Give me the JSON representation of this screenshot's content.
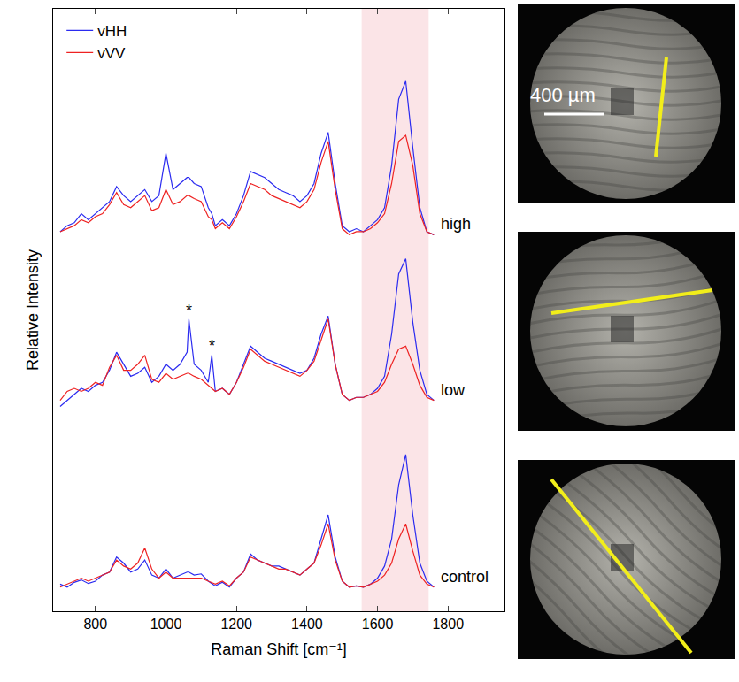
{
  "chart_data": {
    "type": "line",
    "x_label": "Raman Shift [cm⁻¹]",
    "y_label": "Relative Intensity",
    "xlim": [
      680,
      1960
    ],
    "xticks": [
      800,
      1000,
      1200,
      1400,
      1600,
      1800
    ],
    "ylim": [
      0,
      100
    ],
    "tick_labels": "x",
    "grid": false,
    "legend": "top-left",
    "x": [
      700,
      720,
      740,
      760,
      780,
      800,
      820,
      840,
      860,
      880,
      900,
      920,
      940,
      960,
      980,
      1000,
      1020,
      1040,
      1060,
      1065,
      1080,
      1100,
      1120,
      1130,
      1140,
      1160,
      1180,
      1200,
      1220,
      1240,
      1260,
      1280,
      1300,
      1320,
      1340,
      1360,
      1380,
      1400,
      1420,
      1440,
      1460,
      1480,
      1500,
      1520,
      1540,
      1560,
      1580,
      1600,
      1620,
      1640,
      1660,
      1680,
      1700,
      1720,
      1740,
      1760
    ],
    "groups": [
      {
        "label": "high",
        "series": [
          {
            "name": "vHH",
            "color": "#2b2bf0",
            "values": [
              63,
              64,
              64.5,
              66,
              65,
              66,
              67,
              68,
              70.5,
              69,
              68,
              69,
              70,
              68,
              69,
              76,
              70,
              71,
              72,
              72,
              71,
              70.5,
              67,
              66,
              64,
              65,
              64,
              66,
              69,
              73,
              72.5,
              72,
              71,
              70,
              69.5,
              69,
              68,
              69,
              71,
              76,
              79.5,
              71,
              64,
              63,
              63.5,
              63,
              64,
              65,
              67,
              74,
              85,
              88,
              77,
              67,
              63,
              62.5
            ]
          },
          {
            "name": "vVV",
            "color": "#ee2222",
            "values": [
              63,
              63.5,
              64,
              65,
              64.5,
              65.5,
              66,
              67.5,
              69.5,
              67.5,
              67,
              68,
              69,
              66.5,
              67,
              70,
              67.5,
              68,
              69,
              69,
              68.5,
              68,
              65.5,
              65,
              63.5,
              64.5,
              63.5,
              65.5,
              68,
              71,
              70.5,
              70,
              69,
              68.5,
              68,
              67.5,
              67,
              68,
              70,
              74.5,
              78,
              70,
              63.5,
              62.5,
              63,
              63,
              63.5,
              64.5,
              66,
              71,
              78,
              79,
              74,
              66,
              63,
              62.5
            ]
          }
        ]
      },
      {
        "label": "low",
        "series": [
          {
            "name": "vHH",
            "color": "#2b2bf0",
            "values": [
              34,
              35,
              36,
              37,
              36.5,
              37.5,
              38,
              40,
              43,
              41,
              39,
              39.5,
              40.5,
              38,
              39,
              41,
              40,
              41,
              43,
              48.5,
              41,
              40,
              38,
              42.5,
              36.5,
              37,
              36,
              38,
              41,
              44,
              43,
              42,
              41.5,
              41,
              40.5,
              40,
              39.5,
              40,
              42,
              46,
              49,
              41,
              36,
              35,
              35.5,
              35.5,
              36,
              37,
              39,
              46,
              56,
              58.5,
              48,
              40,
              36,
              35
            ]
          },
          {
            "name": "vVV",
            "color": "#ee2222",
            "values": [
              35,
              36.5,
              37,
              36.5,
              37,
              38,
              37.5,
              40.5,
              42.5,
              40,
              40,
              41,
              42.5,
              38.5,
              38,
              39.5,
              38.5,
              39,
              39.5,
              39.5,
              39,
              38.5,
              37.5,
              37,
              36.5,
              37,
              36,
              38,
              40.5,
              43.5,
              42.5,
              41.5,
              41,
              40.5,
              40,
              39.5,
              39,
              40,
              41.5,
              45,
              48.5,
              41,
              36,
              35,
              35.5,
              35.5,
              36,
              36.5,
              38,
              41,
              43.5,
              44,
              41,
              37.5,
              35.5,
              35
            ]
          }
        ]
      },
      {
        "label": "control",
        "series": [
          {
            "name": "vHH",
            "color": "#2b2bf0",
            "values": [
              4.5,
              4,
              4.8,
              5.2,
              4.6,
              5,
              6,
              6.5,
              9,
              8,
              6.5,
              7,
              8.5,
              6,
              5.5,
              7,
              5.5,
              6,
              6.5,
              6.5,
              6,
              6.2,
              5,
              4.6,
              4.2,
              4.8,
              4,
              5.5,
              6.5,
              9.5,
              8.5,
              8,
              7.5,
              7.5,
              7,
              6.5,
              6,
              7,
              8,
              12,
              16,
              9,
              5,
              4,
              4.2,
              4,
              4.5,
              5.5,
              7.5,
              12,
              21,
              26,
              16,
              8,
              5,
              4
            ]
          },
          {
            "name": "vVV",
            "color": "#ee2222",
            "values": [
              4,
              4.5,
              5,
              5.5,
              5,
              5.5,
              6,
              6.5,
              8.5,
              7.5,
              7,
              8,
              10.5,
              7,
              5.5,
              6.5,
              5.5,
              5.5,
              5.5,
              5.5,
              5.5,
              5.5,
              5,
              4.8,
              4.5,
              5,
              4.2,
              5.5,
              6.5,
              9,
              8.5,
              8,
              7.5,
              7,
              7,
              6.5,
              6,
              7,
              8,
              11,
              14.5,
              8.5,
              5,
              4,
              4.2,
              4,
              4.5,
              5,
              6,
              8,
              12,
              14.5,
              10,
              6,
              4.5,
              4
            ]
          }
        ]
      }
    ],
    "annotations": [
      {
        "text": "*",
        "x": 1065,
        "y": 50
      },
      {
        "text": "*",
        "x": 1130,
        "y": 44
      }
    ],
    "highlight": {
      "x0": 1555,
      "x1": 1745,
      "color": "#fbe4e7"
    }
  },
  "micrographs": {
    "scale_bar": "400 µm"
  }
}
